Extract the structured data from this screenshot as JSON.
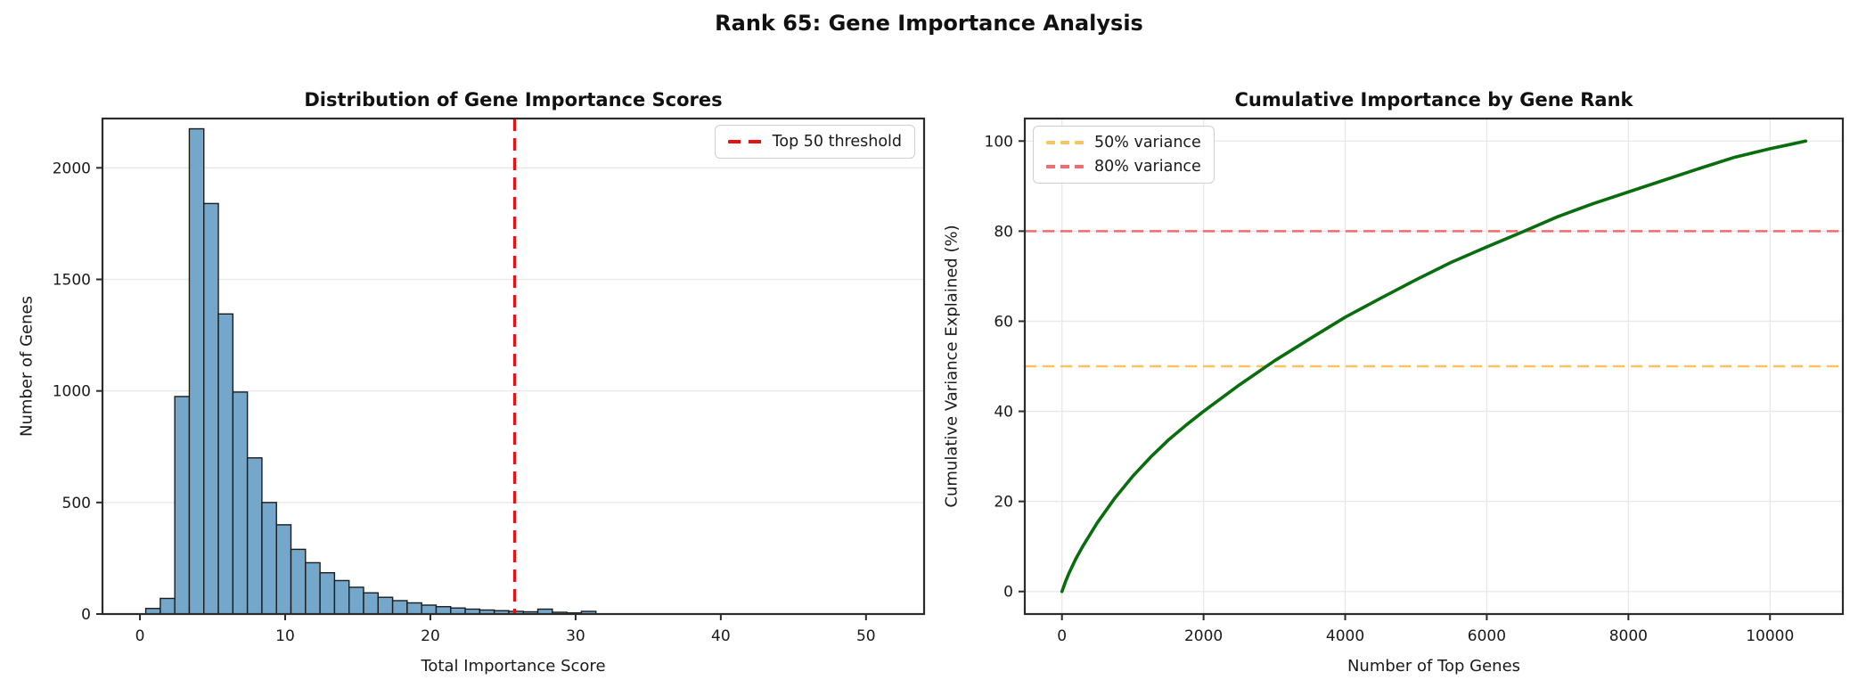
{
  "figure": {
    "title": "Rank 65: Gene Importance Analysis",
    "background_color": "#ffffff",
    "text_color": "#1a1a1a",
    "grid_color": "#e8e8e8",
    "spine_color": "#2b2b2b"
  },
  "chart_data": [
    {
      "type": "bar",
      "subtype": "histogram",
      "title": "Distribution of Gene Importance Scores",
      "xlabel": "Total Importance Score",
      "ylabel": "Number of Genes",
      "bin_start": 0.4,
      "bin_width": 1.0,
      "counts": [
        25,
        70,
        975,
        2175,
        1840,
        1345,
        995,
        700,
        500,
        400,
        290,
        230,
        185,
        150,
        120,
        95,
        75,
        60,
        50,
        40,
        33,
        27,
        22,
        18,
        15,
        12,
        10,
        22,
        8,
        5,
        12
      ],
      "bar_color": "#74a7ca",
      "bar_edge_color": "#1c1c1c",
      "threshold": {
        "x": 25.8,
        "label": "Top 50 threshold",
        "color": "#e81010",
        "style": "dashed"
      },
      "xlim": [
        -2.58,
        54.0
      ],
      "ylim": [
        0,
        2221
      ],
      "xticks": [
        0,
        10,
        20,
        30,
        40,
        50
      ],
      "yticks": [
        0,
        500,
        1000,
        1500,
        2000
      ],
      "grid": "y",
      "legend_position": "upper right"
    },
    {
      "type": "line",
      "title": "Cumulative Importance by Gene Rank",
      "xlabel": "Number of Top Genes",
      "ylabel": "Cumulative Variance Explained (%)",
      "line_color": "#086d0d",
      "line_width": 3.6,
      "total_genes": 10504,
      "x": [
        0,
        50,
        100,
        200,
        300,
        500,
        750,
        1000,
        1250,
        1500,
        1750,
        2000,
        2500,
        3000,
        3500,
        4000,
        4500,
        5000,
        5500,
        6000,
        6500,
        7000,
        7500,
        8000,
        8500,
        9000,
        9500,
        10000,
        10300,
        10504
      ],
      "y": [
        0,
        2.2,
        4.1,
        7.4,
        10.2,
        15.3,
        20.8,
        25.6,
        29.8,
        33.6,
        36.9,
        40.0,
        45.8,
        51.2,
        56.1,
        60.9,
        65.1,
        69.2,
        73.1,
        76.5,
        79.8,
        83.2,
        86.1,
        88.7,
        91.3,
        93.9,
        96.4,
        98.3,
        99.3,
        100
      ],
      "hlines": [
        {
          "y": 50,
          "label": "50% variance",
          "color": "#ffc163",
          "style": "dashed"
        },
        {
          "y": 80,
          "label": "80% variance",
          "color": "#f56b6b",
          "style": "dashed"
        }
      ],
      "xlim": [
        -525,
        11029
      ],
      "ylim": [
        -5,
        105
      ],
      "xticks": [
        0,
        2000,
        4000,
        6000,
        8000,
        10000
      ],
      "yticks": [
        0,
        20,
        40,
        60,
        80,
        100
      ],
      "grid": "both",
      "legend_position": "upper left"
    }
  ]
}
